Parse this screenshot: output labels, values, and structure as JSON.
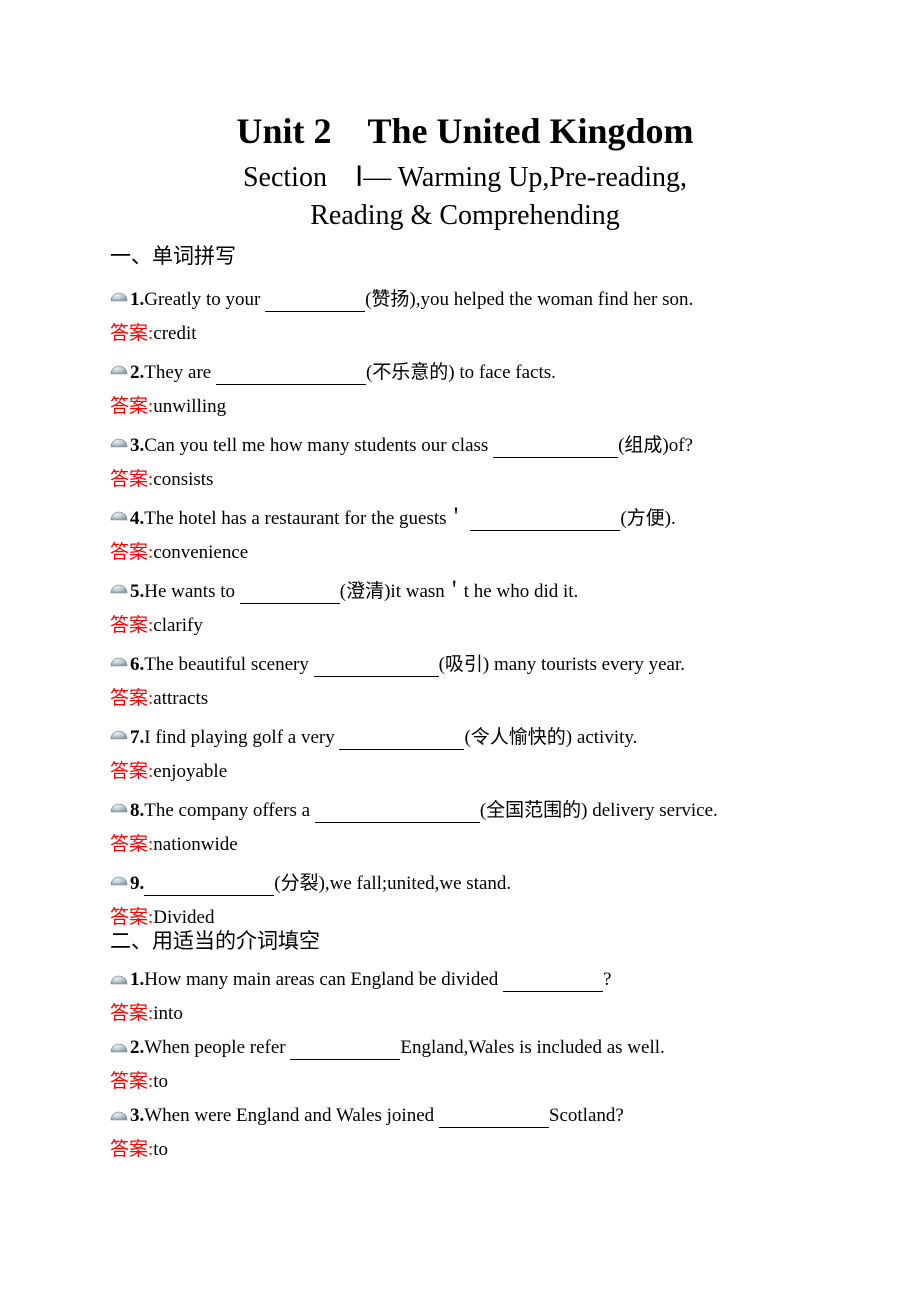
{
  "title_main": "Unit 2 The United Kingdom",
  "title_sub1": "Section Ⅰ— Warming Up,Pre-reading,",
  "title_sub2": "Reading & Comprehending",
  "section1_heading": "一、单词拼写",
  "section2_heading": "二、用适当的介词填空",
  "answer_label": "答案:",
  "bullet_colors": {
    "light": "#e8eef2",
    "mid": "#b9c7cf",
    "dark": "#8a9ba5",
    "stroke": "#6b7c85"
  },
  "section1": [
    {
      "num": "1.",
      "before": "Greatly to your ",
      "blank_w": 100,
      "after": "(赞扬),you helped the woman find her son.",
      "answer": "credit"
    },
    {
      "num": "2.",
      "before": "They are ",
      "blank_w": 150,
      "after": "(不乐意的) to face facts.",
      "answer": "unwilling"
    },
    {
      "num": "3.",
      "before": "Can you tell me how many students our class ",
      "blank_w": 125,
      "after": "(组成)of?",
      "answer": "consists"
    },
    {
      "num": "4.",
      "before": "The hotel has a restaurant for the guests＇ ",
      "blank_w": 150,
      "after": "(方便).",
      "answer": "convenience"
    },
    {
      "num": "5.",
      "before": "He wants to ",
      "blank_w": 100,
      "after": "(澄清)it wasn＇t he who did it.",
      "answer": "clarify"
    },
    {
      "num": "6.",
      "before": "The beautiful scenery ",
      "blank_w": 125,
      "after": "(吸引) many tourists every year.",
      "answer": "attracts"
    },
    {
      "num": "7.",
      "before": "I find playing golf a very ",
      "blank_w": 125,
      "after": "(令人愉快的) activity.",
      "answer": "enjoyable"
    },
    {
      "num": "8.",
      "before": "The company offers a ",
      "blank_w": 165,
      "after": "(全国范围的) delivery service.",
      "answer": "nationwide"
    },
    {
      "num": "9.",
      "before": "",
      "blank_w": 130,
      "after": "(分裂),we fall;united,we stand.",
      "answer": "Divided"
    }
  ],
  "section2": [
    {
      "num": "1.",
      "before": "How many main areas can England be divided ",
      "blank_w": 100,
      "after": "?",
      "answer": "into"
    },
    {
      "num": "2.",
      "before": "When people refer ",
      "blank_w": 110,
      "after": "England,Wales is included as well.",
      "answer": "to"
    },
    {
      "num": "3.",
      "before": "When were England and Wales joined ",
      "blank_w": 110,
      "after": "Scotland?",
      "answer": "to"
    }
  ]
}
